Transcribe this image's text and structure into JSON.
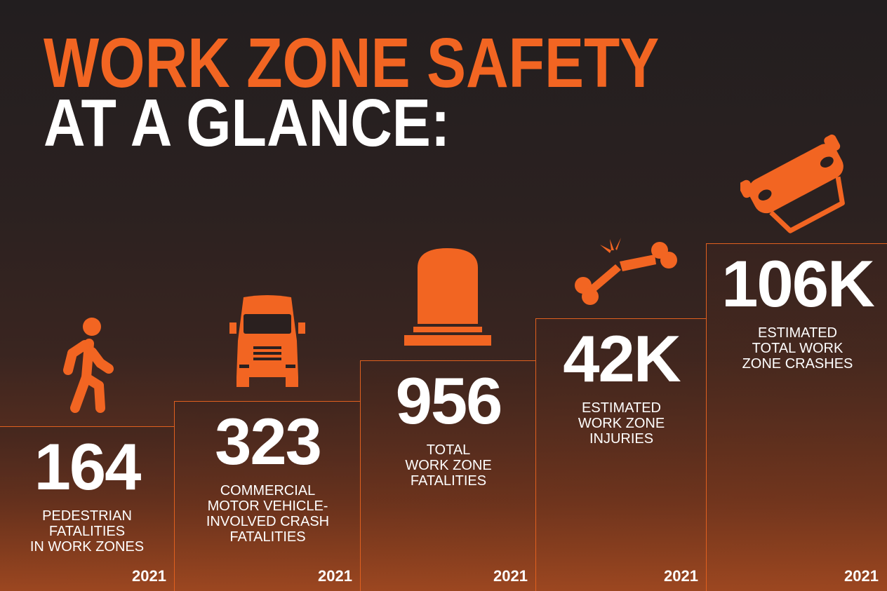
{
  "title": {
    "line1": "WORK ZONE SAFETY",
    "line2": "AT A GLANCE:"
  },
  "colors": {
    "accent": "#f26522",
    "text": "#ffffff",
    "background_top": "#221e1f",
    "background_bottom": "#9a4620"
  },
  "stats": [
    {
      "value": "164",
      "label": [
        "PEDESTRIAN",
        "FATALITIES",
        "IN WORK ZONES"
      ],
      "year": "2021",
      "icon": "pedestrian-icon"
    },
    {
      "value": "323",
      "label": [
        "COMMERCIAL",
        "MOTOR VEHICLE-",
        "INVOLVED CRASH",
        "FATALITIES"
      ],
      "year": "2021",
      "icon": "truck-icon"
    },
    {
      "value": "956",
      "label": [
        "TOTAL",
        "WORK ZONE",
        "FATALITIES"
      ],
      "year": "2021",
      "icon": "tombstone-icon"
    },
    {
      "value": "42K",
      "label": [
        "ESTIMATED",
        "WORK ZONE",
        "INJURIES"
      ],
      "year": "2021",
      "icon": "broken-bone-icon"
    },
    {
      "value": "106K",
      "label": [
        "ESTIMATED",
        "TOTAL WORK",
        "ZONE CRASHES"
      ],
      "year": "2021",
      "icon": "overturned-car-icon"
    }
  ]
}
